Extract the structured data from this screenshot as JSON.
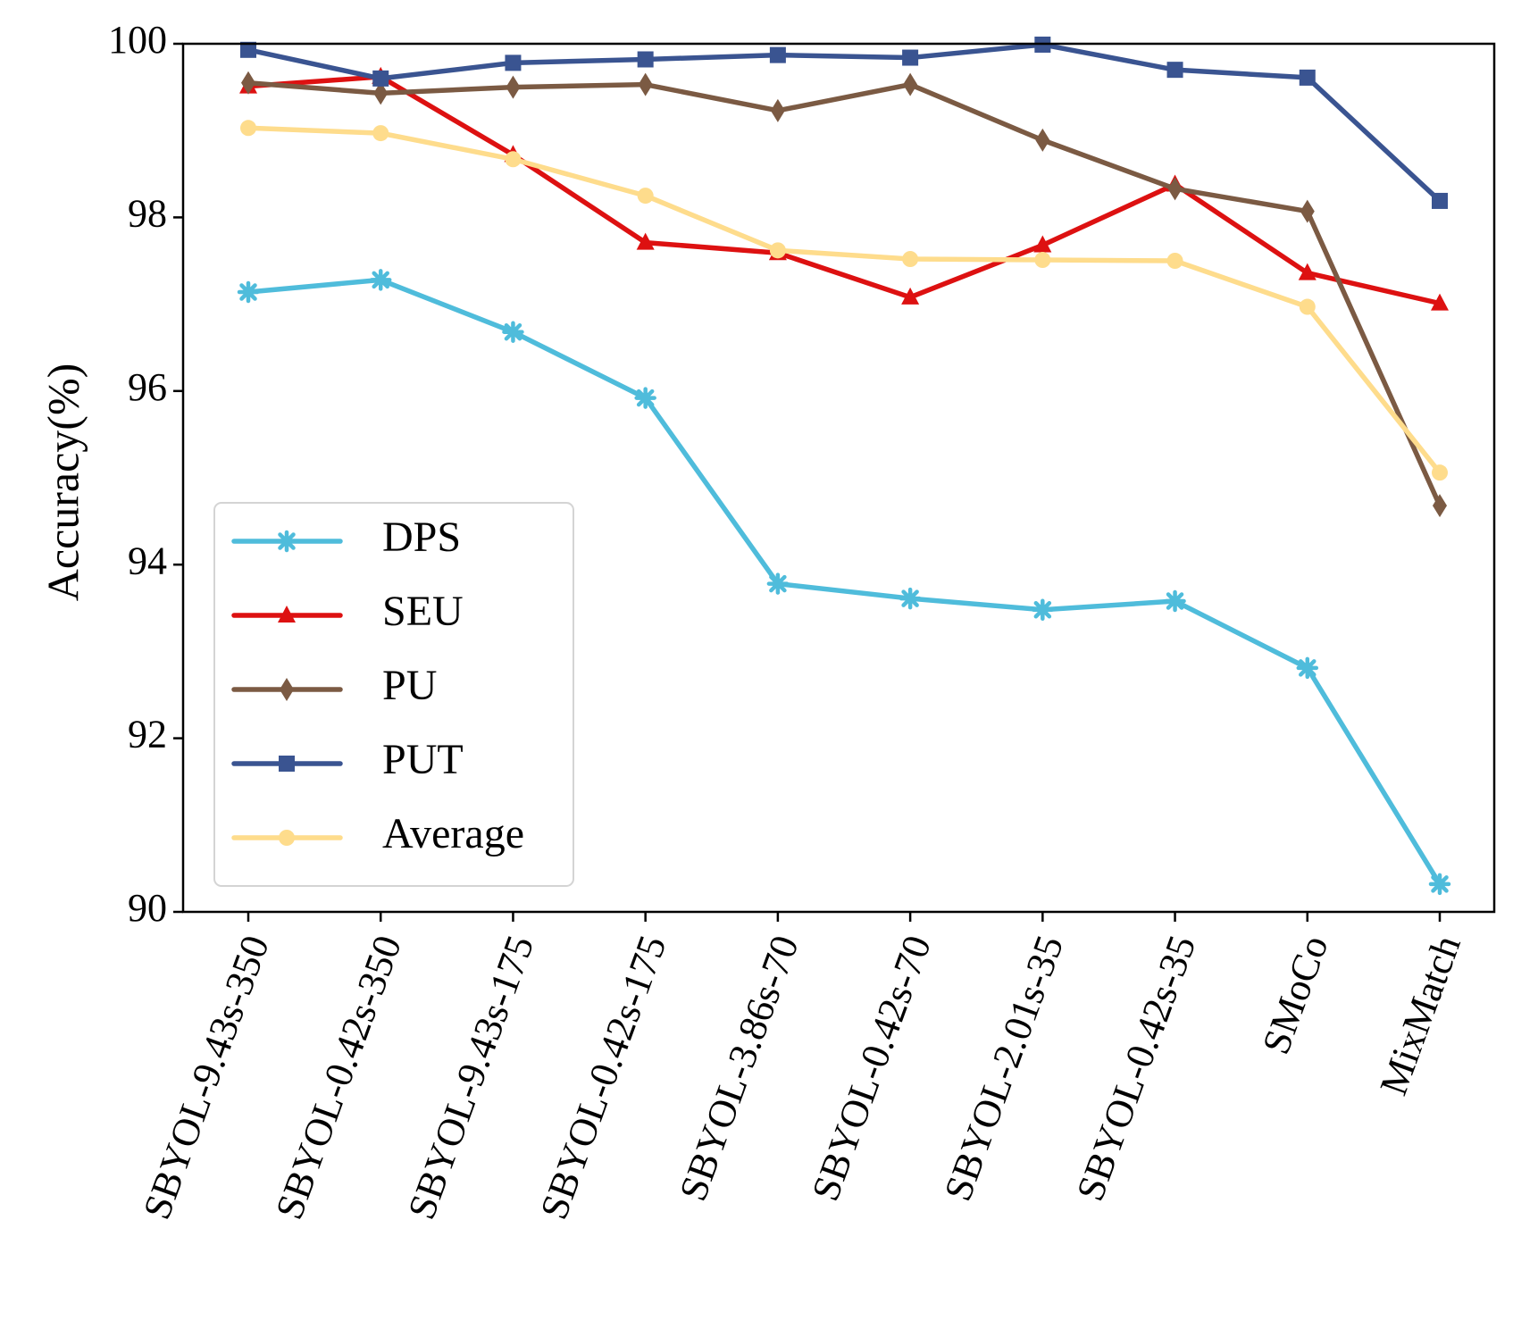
{
  "chart_data": {
    "type": "line",
    "title": "",
    "xlabel": "",
    "ylabel": "Accuracy(%)",
    "ylim": [
      90,
      100
    ],
    "yticks": [
      90,
      92,
      94,
      96,
      98,
      100
    ],
    "grid": false,
    "legend_position": "center-left",
    "categories": [
      "SBYOL-9.43s-350",
      "SBYOL-0.42s-350",
      "SBYOL-9.43s-175",
      "SBYOL-0.42s-175",
      "SBYOL-3.86s-70",
      "SBYOL-0.42s-70",
      "SBYOL-2.01s-35",
      "SBYOL-0.42s-35",
      "SMoCo",
      "MixMatch"
    ],
    "series": [
      {
        "name": "DPS",
        "color": "#4fbcdb",
        "marker": "x-star",
        "values": [
          97.14,
          97.28,
          96.68,
          95.92,
          93.78,
          93.61,
          93.48,
          93.58,
          92.81,
          90.32
        ]
      },
      {
        "name": "SEU",
        "color": "#dd1111",
        "marker": "triangle",
        "values": [
          99.51,
          99.62,
          98.72,
          97.71,
          97.59,
          97.08,
          97.68,
          98.38,
          97.36,
          97.01
        ]
      },
      {
        "name": "PU",
        "color": "#7b5a43",
        "marker": "diamond",
        "values": [
          99.55,
          99.43,
          99.5,
          99.53,
          99.23,
          99.53,
          98.89,
          98.33,
          98.07,
          94.68
        ]
      },
      {
        "name": "PUT",
        "color": "#3a5491",
        "marker": "square",
        "values": [
          99.93,
          99.6,
          99.78,
          99.82,
          99.87,
          99.84,
          99.99,
          99.7,
          99.61,
          98.19
        ]
      },
      {
        "name": "Average",
        "color": "#fedc8c",
        "marker": "circle",
        "values": [
          99.03,
          98.97,
          98.67,
          98.25,
          97.62,
          97.52,
          97.51,
          97.5,
          96.97,
          95.06
        ]
      }
    ]
  }
}
